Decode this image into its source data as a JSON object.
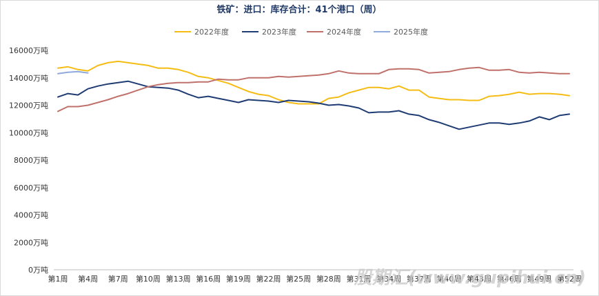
{
  "chart_data": {
    "type": "line",
    "title": "铁矿：进口：库存合计：41个港口（周）",
    "xlabel": "",
    "ylabel": "",
    "ylim": [
      0,
      16000
    ],
    "y_ticks": [
      {
        "value": 0,
        "label": "0万吨"
      },
      {
        "value": 2000,
        "label": "2000万吨"
      },
      {
        "value": 4000,
        "label": "4000万吨"
      },
      {
        "value": 6000,
        "label": "6000万吨"
      },
      {
        "value": 8000,
        "label": "8000万吨"
      },
      {
        "value": 10000,
        "label": "10000万吨"
      },
      {
        "value": 12000,
        "label": "12000万吨"
      },
      {
        "value": 14000,
        "label": "14000万吨"
      },
      {
        "value": 16000,
        "label": "16000万吨"
      }
    ],
    "x_ticks": [
      {
        "week": 1,
        "label": "第1周"
      },
      {
        "week": 4,
        "label": "第4周"
      },
      {
        "week": 7,
        "label": "第7周"
      },
      {
        "week": 10,
        "label": "第10周"
      },
      {
        "week": 13,
        "label": "第13周"
      },
      {
        "week": 16,
        "label": "第16周"
      },
      {
        "week": 19,
        "label": "第19周"
      },
      {
        "week": 22,
        "label": "第22周"
      },
      {
        "week": 25,
        "label": "第25周"
      },
      {
        "week": 28,
        "label": "第28周"
      },
      {
        "week": 31,
        "label": "第31周"
      },
      {
        "week": 34,
        "label": "第34周"
      },
      {
        "week": 37,
        "label": "第37周"
      },
      {
        "week": 40,
        "label": "第40周"
      },
      {
        "week": 43,
        "label": "第43周"
      },
      {
        "week": 46,
        "label": "第46周"
      },
      {
        "week": 49,
        "label": "第49周"
      },
      {
        "week": 52,
        "label": "第52周"
      }
    ],
    "legend_position": "top-center",
    "grid": false,
    "series": [
      {
        "name": "2022年度",
        "color": "#f5bc14",
        "start_week": 1,
        "values": [
          14700,
          14800,
          14600,
          14500,
          14900,
          15100,
          15200,
          15100,
          15000,
          14900,
          14700,
          14700,
          14600,
          14400,
          14100,
          14000,
          13800,
          13600,
          13300,
          13000,
          12800,
          12700,
          12400,
          12200,
          12100,
          12100,
          12100,
          12500,
          12600,
          12900,
          13100,
          13300,
          13300,
          13200,
          13400,
          13100,
          13100,
          12600,
          12500,
          12400,
          12400,
          12350,
          12350,
          12650,
          12700,
          12800,
          12950,
          12800,
          12850,
          12850,
          12800,
          12700
        ]
      },
      {
        "name": "2023年度",
        "color": "#1f3b73",
        "start_week": 1,
        "values": [
          12600,
          12850,
          12750,
          13200,
          13400,
          13550,
          13650,
          13750,
          13550,
          13350,
          13300,
          13250,
          13100,
          12800,
          12550,
          12650,
          12500,
          12350,
          12200,
          12400,
          12350,
          12300,
          12200,
          12350,
          12300,
          12250,
          12150,
          12000,
          12050,
          11950,
          11800,
          11450,
          11500,
          11500,
          11600,
          11350,
          11250,
          10950,
          10750,
          10500,
          10250,
          10400,
          10550,
          10700,
          10700,
          10600,
          10700,
          10850,
          11150,
          10950,
          11250,
          11350
        ]
      },
      {
        "name": "2024年度",
        "color": "#c0706a",
        "start_week": 1,
        "values": [
          11550,
          11900,
          11900,
          12000,
          12200,
          12400,
          12650,
          12850,
          13100,
          13350,
          13500,
          13600,
          13650,
          13650,
          13700,
          13700,
          13900,
          13850,
          13850,
          14000,
          14000,
          14000,
          14100,
          14050,
          14100,
          14150,
          14200,
          14300,
          14500,
          14350,
          14300,
          14300,
          14300,
          14600,
          14650,
          14650,
          14600,
          14350,
          14400,
          14450,
          14600,
          14700,
          14750,
          14550,
          14550,
          14600,
          14400,
          14350,
          14400,
          14350,
          14300,
          14300
        ]
      },
      {
        "name": "2025年度",
        "color": "#8ea9db",
        "start_week": 1,
        "values": [
          14300,
          14400,
          14450,
          14350
        ]
      }
    ]
  },
  "watermark": {
    "text": "股期汇(www.gupihui.cn)"
  }
}
